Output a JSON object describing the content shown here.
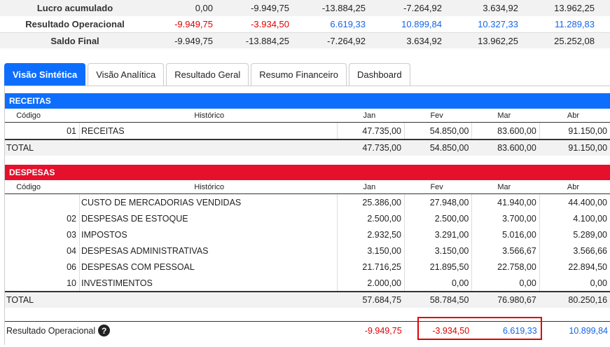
{
  "summary": {
    "rows": [
      {
        "label": "Lucro acumulado",
        "values": [
          "0,00",
          "-9.949,75",
          "-13.884,25",
          "-7.264,92",
          "3.634,92",
          "13.962,25"
        ],
        "classes": [
          "neu",
          "neu",
          "neu",
          "neu",
          "neu",
          "neu"
        ]
      },
      {
        "label": "Resultado Operacional",
        "values": [
          "-9.949,75",
          "-3.934,50",
          "6.619,33",
          "10.899,84",
          "10.327,33",
          "11.289,83"
        ],
        "classes": [
          "neg",
          "neg",
          "pos",
          "pos",
          "pos",
          "pos"
        ]
      },
      {
        "label": "Saldo Final",
        "values": [
          "-9.949,75",
          "-13.884,25",
          "-7.264,92",
          "3.634,92",
          "13.962,25",
          "25.252,08"
        ],
        "classes": [
          "neu",
          "neu",
          "neu",
          "neu",
          "neu",
          "neu"
        ]
      }
    ]
  },
  "tabs": [
    "Visão Sintética",
    "Visão Analítica",
    "Resultado Geral",
    "Resumo Financeiro",
    "Dashboard"
  ],
  "columns": {
    "codigo": "Código",
    "historico": "Histórico",
    "months": [
      "Jan",
      "Fev",
      "Mar",
      "Abr"
    ]
  },
  "receitas": {
    "title": "RECEITAS",
    "rows": [
      {
        "codigo": "01",
        "historico": "RECEITAS",
        "values": [
          "47.735,00",
          "54.850,00",
          "83.600,00",
          "91.150,00"
        ]
      }
    ],
    "total_label": "TOTAL",
    "total": [
      "47.735,00",
      "54.850,00",
      "83.600,00",
      "91.150,00"
    ]
  },
  "despesas": {
    "title": "DESPESAS",
    "rows": [
      {
        "codigo": "",
        "historico": "CUSTO DE MERCADORIAS VENDIDAS",
        "values": [
          "25.386,00",
          "27.948,00",
          "41.940,00",
          "44.400,00"
        ]
      },
      {
        "codigo": "02",
        "historico": "DESPESAS DE ESTOQUE",
        "values": [
          "2.500,00",
          "2.500,00",
          "3.700,00",
          "4.100,00"
        ]
      },
      {
        "codigo": "03",
        "historico": "IMPOSTOS",
        "values": [
          "2.932,50",
          "3.291,00",
          "5.016,00",
          "5.289,00"
        ]
      },
      {
        "codigo": "04",
        "historico": "DESPESAS ADMINISTRATIVAS",
        "values": [
          "3.150,00",
          "3.150,00",
          "3.566,67",
          "3.566,66"
        ]
      },
      {
        "codigo": "06",
        "historico": "DESPESAS COM PESSOAL",
        "values": [
          "21.716,25",
          "21.895,50",
          "22.758,00",
          "22.894,50"
        ]
      },
      {
        "codigo": "10",
        "historico": "INVESTIMENTOS",
        "values": [
          "2.000,00",
          "0,00",
          "0,00",
          "0,00"
        ]
      }
    ],
    "total_label": "TOTAL",
    "total": [
      "57.684,75",
      "58.784,50",
      "76.980,67",
      "80.250,16"
    ]
  },
  "resultado": {
    "label": "Resultado Operacional",
    "help_icon": "?",
    "values": [
      "-9.949,75",
      "-3.934,50",
      "6.619,33",
      "10.899,84"
    ],
    "classes": [
      "neg",
      "neg",
      "pos",
      "pos"
    ]
  },
  "colors": {
    "blue": "#0d6efd",
    "red": "#e6102c",
    "negative": "#e00000",
    "positive": "#1565e6"
  }
}
